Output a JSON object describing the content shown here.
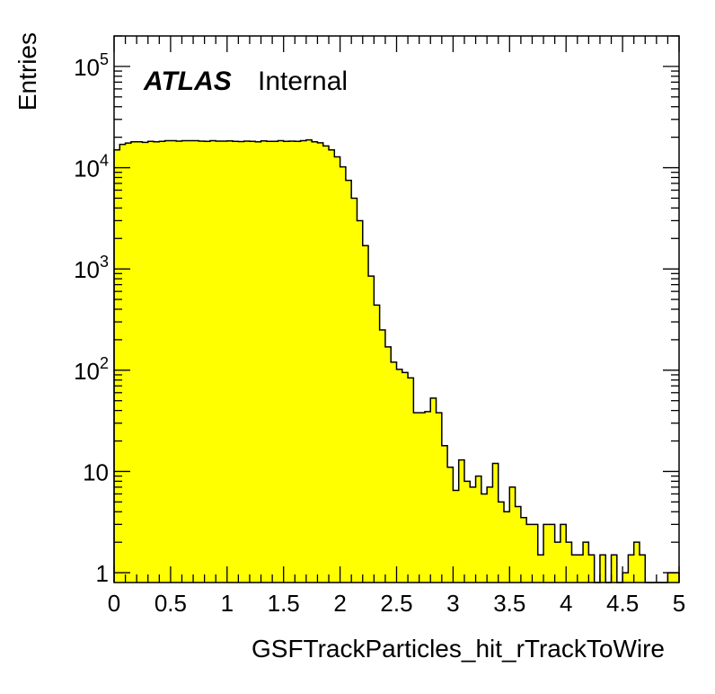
{
  "chart_data": {
    "type": "bar",
    "histogram": true,
    "xlabel": "GSFTrackParticles_hit_rTrackToWire",
    "ylabel": "Entries",
    "xlim": [
      0,
      5
    ],
    "ylim": [
      0.8,
      200000
    ],
    "yscale": "log",
    "bin_width": 0.05,
    "fill_color": "#ffff00",
    "line_color": "#000000",
    "grid": false,
    "labels": {
      "atlas": "ATLAS",
      "status": "Internal"
    },
    "x_ticks": [
      "0",
      "0.5",
      "1",
      "1.5",
      "2",
      "2.5",
      "3",
      "3.5",
      "4",
      "4.5",
      "5"
    ],
    "y_ticks": [
      {
        "value": 1,
        "base": "1",
        "exp": ""
      },
      {
        "value": 10,
        "base": "10",
        "exp": ""
      },
      {
        "value": 100,
        "base": "10",
        "exp": "2"
      },
      {
        "value": 1000,
        "base": "10",
        "exp": "3"
      },
      {
        "value": 10000,
        "base": "10",
        "exp": "4"
      },
      {
        "value": 100000,
        "base": "10",
        "exp": "5"
      }
    ],
    "values": [
      15000,
      17000,
      17500,
      18000,
      18000,
      17800,
      18200,
      18000,
      18200,
      18500,
      18500,
      18300,
      18500,
      18500,
      18500,
      18300,
      18200,
      18500,
      18300,
      18300,
      18400,
      18200,
      18100,
      18300,
      18200,
      18000,
      18400,
      18200,
      18200,
      18500,
      18200,
      18300,
      18200,
      18500,
      18800,
      18000,
      17600,
      16400,
      15000,
      12800,
      10200,
      7500,
      5000,
      3000,
      1700,
      850,
      440,
      250,
      170,
      120,
      102,
      95,
      84,
      38,
      38,
      39,
      53,
      38,
      18,
      11,
      6.5,
      13,
      8,
      7,
      9,
      6,
      7,
      12,
      5,
      4,
      7,
      4.5,
      3.5,
      3,
      3,
      1.5,
      3,
      3,
      2,
      3,
      2,
      1.5,
      1.5,
      2,
      1.5,
      0,
      1.5,
      0,
      1.5,
      0,
      1,
      1.5,
      2,
      1.5,
      0,
      0,
      0,
      0,
      1,
      1
    ]
  }
}
